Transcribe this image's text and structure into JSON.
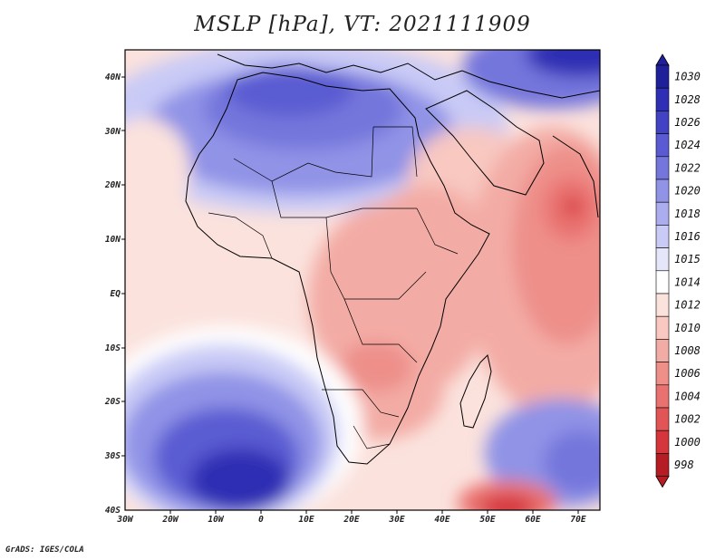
{
  "title": "MSLP [hPa], VT: 2021111909",
  "footer": "GrADS: IGES/COLA",
  "map": {
    "projection": "lat-lon",
    "lon_range": [
      -30,
      75
    ],
    "lat_range": [
      -40,
      45
    ],
    "x_ticks": [
      "30W",
      "20W",
      "10W",
      "0",
      "10E",
      "20E",
      "30E",
      "40E",
      "50E",
      "60E",
      "70E"
    ],
    "y_ticks": [
      "40N",
      "30N",
      "20N",
      "10N",
      "EQ",
      "10S",
      "20S",
      "30S",
      "40S"
    ]
  },
  "colorbar": {
    "levels": [
      "998",
      "1000",
      "1002",
      "1004",
      "1006",
      "1008",
      "1010",
      "1012",
      "1014",
      "1015",
      "1016",
      "1018",
      "1020",
      "1022",
      "1024",
      "1026",
      "1028",
      "1030"
    ],
    "colors": [
      "#b51c24",
      "#d4363c",
      "#e25557",
      "#e97270",
      "#ee8f8a",
      "#f3aca5",
      "#f8c8c1",
      "#fbe2dd",
      "#ffffff",
      "#e6e6fb",
      "#c9caf6",
      "#acadee",
      "#9093e6",
      "#7476dc",
      "#5a5bd2",
      "#4142c4",
      "#2e2fb4",
      "#1f1f9a"
    ]
  },
  "field": {
    "colors": {
      "very_high": "#2e2fb4",
      "high": "#5a5bd2",
      "mid_high": "#9093e6",
      "low_high": "#c9caf6",
      "neutral": "#fbe2dd",
      "low": "#f3aca5",
      "lower": "#ee8f8a",
      "deep_low": "#d4363c"
    }
  }
}
